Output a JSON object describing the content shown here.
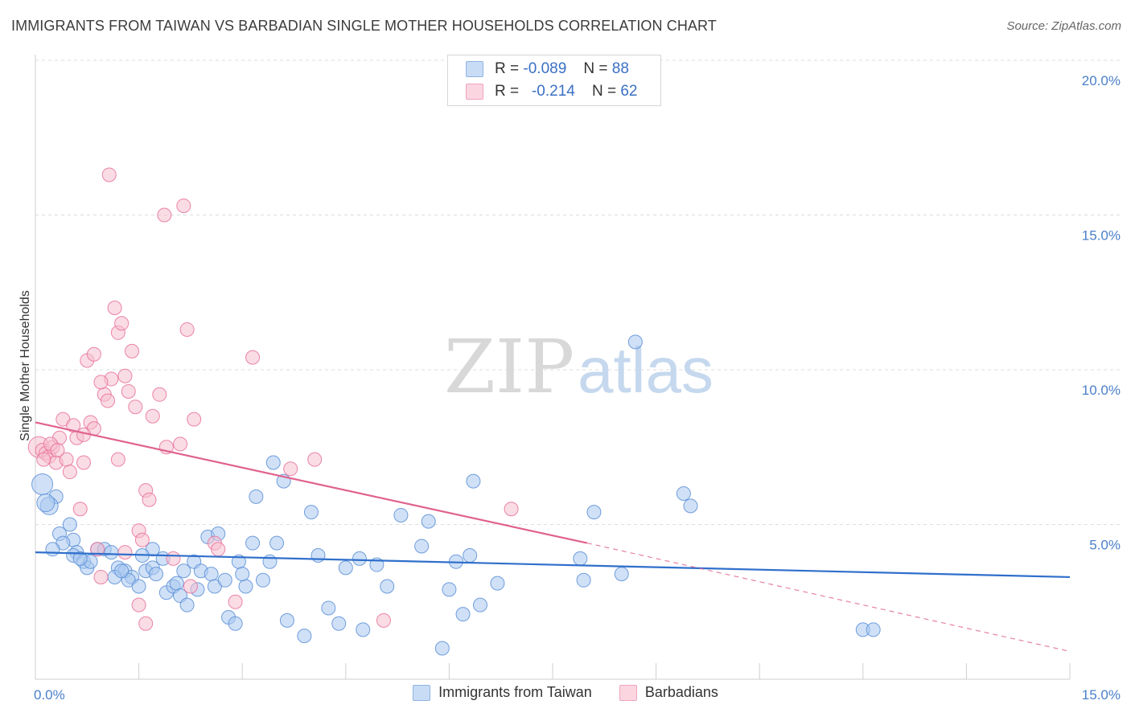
{
  "title": "IMMIGRANTS FROM TAIWAN VS BARBADIAN SINGLE MOTHER HOUSEHOLDS CORRELATION CHART",
  "source": "Source: ZipAtlas.com",
  "watermark": {
    "zip": "ZIP",
    "atlas": "atlas"
  },
  "legend": {
    "r_label": "R =",
    "n_label": "N =",
    "rows": [
      {
        "r": "-0.089",
        "n": "88",
        "color": "#a9c8f0"
      },
      {
        "r": "-0.214",
        "n": "62",
        "color": "#f6bfd0"
      }
    ]
  },
  "chart_data": {
    "type": "scatter",
    "title": "IMMIGRANTS FROM TAIWAN VS BARBADIAN SINGLE MOTHER HOUSEHOLDS CORRELATION CHART",
    "xlabel": "",
    "ylabel": "Single Mother Households",
    "xlim": [
      0,
      15
    ],
    "ylim": [
      0,
      20
    ],
    "x_tick_labels": [
      "0.0%",
      "15.0%"
    ],
    "y_ticks": [
      5,
      10,
      15,
      20
    ],
    "y_tick_labels": [
      "5.0%",
      "10.0%",
      "15.0%",
      "20.0%"
    ],
    "grid": true,
    "legend_position": "top-center",
    "series": [
      {
        "name": "Immigrants from Taiwan",
        "color": "#5b8ed6",
        "fill": "#a9c8f0",
        "trend": {
          "x": [
            0,
            15
          ],
          "y": [
            4.1,
            3.3
          ]
        },
        "points": [
          [
            0.1,
            6.3
          ],
          [
            0.3,
            5.9
          ],
          [
            0.2,
            5.6
          ],
          [
            0.5,
            5.0
          ],
          [
            0.35,
            4.7
          ],
          [
            0.55,
            4.5
          ],
          [
            0.4,
            4.4
          ],
          [
            0.6,
            4.1
          ],
          [
            0.55,
            4.0
          ],
          [
            0.7,
            3.8
          ],
          [
            0.75,
            3.6
          ],
          [
            0.9,
            4.2
          ],
          [
            1.0,
            4.2
          ],
          [
            1.1,
            4.1
          ],
          [
            1.2,
            3.6
          ],
          [
            1.3,
            3.5
          ],
          [
            1.15,
            3.3
          ],
          [
            1.4,
            3.3
          ],
          [
            1.35,
            3.2
          ],
          [
            1.5,
            3.0
          ],
          [
            1.6,
            3.5
          ],
          [
            1.7,
            3.6
          ],
          [
            1.75,
            3.4
          ],
          [
            1.85,
            3.9
          ],
          [
            1.9,
            2.8
          ],
          [
            2.0,
            3.0
          ],
          [
            2.05,
            3.1
          ],
          [
            2.15,
            3.5
          ],
          [
            2.1,
            2.7
          ],
          [
            2.2,
            2.4
          ],
          [
            2.3,
            3.8
          ],
          [
            2.4,
            3.5
          ],
          [
            2.55,
            3.4
          ],
          [
            2.6,
            3.0
          ],
          [
            2.75,
            3.2
          ],
          [
            2.8,
            2.0
          ],
          [
            2.9,
            1.8
          ],
          [
            2.95,
            3.8
          ],
          [
            3.05,
            3.0
          ],
          [
            3.15,
            4.4
          ],
          [
            3.2,
            5.9
          ],
          [
            3.3,
            3.2
          ],
          [
            3.4,
            3.8
          ],
          [
            3.45,
            7.0
          ],
          [
            3.5,
            4.4
          ],
          [
            3.6,
            6.4
          ],
          [
            3.65,
            1.9
          ],
          [
            3.9,
            1.4
          ],
          [
            4.0,
            5.4
          ],
          [
            4.1,
            4.0
          ],
          [
            4.25,
            2.3
          ],
          [
            4.4,
            1.8
          ],
          [
            4.5,
            3.6
          ],
          [
            4.7,
            3.9
          ],
          [
            4.75,
            1.6
          ],
          [
            5.1,
            3.0
          ],
          [
            5.3,
            5.3
          ],
          [
            5.6,
            4.3
          ],
          [
            5.7,
            5.1
          ],
          [
            5.9,
            1.0
          ],
          [
            6.0,
            2.9
          ],
          [
            6.1,
            3.8
          ],
          [
            6.2,
            2.1
          ],
          [
            6.3,
            4.0
          ],
          [
            6.35,
            6.4
          ],
          [
            6.45,
            2.4
          ],
          [
            6.7,
            3.1
          ],
          [
            7.9,
            3.9
          ],
          [
            7.95,
            3.2
          ],
          [
            8.1,
            5.4
          ],
          [
            8.5,
            3.4
          ],
          [
            8.7,
            10.9
          ],
          [
            9.4,
            6.0
          ],
          [
            9.5,
            5.6
          ],
          [
            12.0,
            1.6
          ],
          [
            12.15,
            1.6
          ],
          [
            0.25,
            4.2
          ],
          [
            0.8,
            3.8
          ],
          [
            1.7,
            4.2
          ],
          [
            2.5,
            4.6
          ],
          [
            2.65,
            4.7
          ],
          [
            1.25,
            3.5
          ],
          [
            0.65,
            3.9
          ],
          [
            1.55,
            4.0
          ],
          [
            3.0,
            3.4
          ],
          [
            4.95,
            3.7
          ],
          [
            2.35,
            2.9
          ],
          [
            0.15,
            5.7
          ]
        ]
      },
      {
        "name": "Barbadians",
        "color": "#e8719a",
        "fill": "#f6bfd0",
        "trend": {
          "x": [
            0,
            8.0
          ],
          "y": [
            8.3,
            4.4
          ]
        },
        "trend_dashed": {
          "x": [
            8.0,
            15
          ],
          "y": [
            4.4,
            0.9
          ]
        },
        "points": [
          [
            0.05,
            7.5
          ],
          [
            0.1,
            7.4
          ],
          [
            0.15,
            7.3
          ],
          [
            0.2,
            7.2
          ],
          [
            0.25,
            7.5
          ],
          [
            0.3,
            7.0
          ],
          [
            0.35,
            7.8
          ],
          [
            0.4,
            8.4
          ],
          [
            0.45,
            7.1
          ],
          [
            0.5,
            6.7
          ],
          [
            0.55,
            8.2
          ],
          [
            0.6,
            7.8
          ],
          [
            0.65,
            5.5
          ],
          [
            0.7,
            7.0
          ],
          [
            0.8,
            8.3
          ],
          [
            0.85,
            8.1
          ],
          [
            0.9,
            4.2
          ],
          [
            0.95,
            3.3
          ],
          [
            1.0,
            9.2
          ],
          [
            1.05,
            9.0
          ],
          [
            1.1,
            9.7
          ],
          [
            1.15,
            12.0
          ],
          [
            1.2,
            11.2
          ],
          [
            1.25,
            11.5
          ],
          [
            1.3,
            9.8
          ],
          [
            1.35,
            9.3
          ],
          [
            1.4,
            10.6
          ],
          [
            1.45,
            8.8
          ],
          [
            1.5,
            4.8
          ],
          [
            1.55,
            4.5
          ],
          [
            1.6,
            6.1
          ],
          [
            1.65,
            5.8
          ],
          [
            1.7,
            8.5
          ],
          [
            1.8,
            9.2
          ],
          [
            1.9,
            7.5
          ],
          [
            2.0,
            3.9
          ],
          [
            2.1,
            7.6
          ],
          [
            2.2,
            11.3
          ],
          [
            2.3,
            8.4
          ],
          [
            2.6,
            4.4
          ],
          [
            2.65,
            4.2
          ],
          [
            2.9,
            2.5
          ],
          [
            3.15,
            10.4
          ],
          [
            3.7,
            6.8
          ],
          [
            4.05,
            7.1
          ],
          [
            5.05,
            1.9
          ],
          [
            6.9,
            5.5
          ],
          [
            1.07,
            16.3
          ],
          [
            1.87,
            15.0
          ],
          [
            2.15,
            15.3
          ],
          [
            0.75,
            10.3
          ],
          [
            0.85,
            10.5
          ],
          [
            0.12,
            7.1
          ],
          [
            0.22,
            7.6
          ],
          [
            0.32,
            7.4
          ],
          [
            1.2,
            7.1
          ],
          [
            0.95,
            9.6
          ],
          [
            1.5,
            2.4
          ],
          [
            1.6,
            1.8
          ],
          [
            2.25,
            3.0
          ],
          [
            0.7,
            7.9
          ],
          [
            1.3,
            4.1
          ]
        ]
      }
    ]
  },
  "bottom_legend": [
    {
      "label": "Immigrants from Taiwan",
      "color": "#a9c8f0"
    },
    {
      "label": "Barbadians",
      "color": "#f6bfd0"
    }
  ]
}
